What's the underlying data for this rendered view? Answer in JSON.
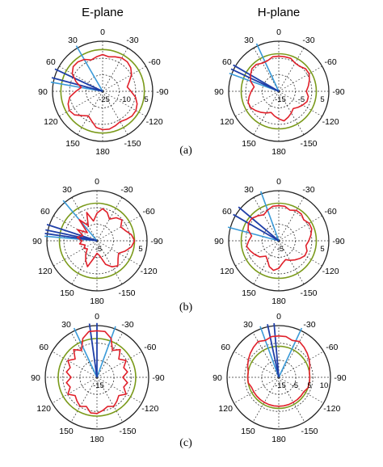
{
  "figure": {
    "column_titles": [
      "E-plane",
      "H-plane"
    ],
    "row_labels": [
      "(a)",
      "(b)",
      "(c)"
    ]
  },
  "colors": {
    "measured": "#e0202a",
    "reference_circle": "#7a9a1a",
    "main_beam": "#1f3fa8",
    "beam_edge": "#3a9ad8",
    "grid": "#333333",
    "outer_ring": "#222222"
  },
  "chart_data": [
    {
      "type": "polar",
      "plane": "E-plane",
      "case": "(a)",
      "angle_labels": [
        "0",
        "-30",
        "-60",
        "-90",
        "-120",
        "-150",
        "180",
        "150",
        "120",
        "90",
        "60",
        "30"
      ],
      "radial_labels": [
        "-25",
        "-10",
        "5"
      ],
      "r_range_db": [
        -25,
        5
      ],
      "reference_level_db": 0,
      "beam_deg": {
        "main": [
          65,
          75
        ],
        "edges": [
          30,
          80
        ]
      },
      "pattern_db": [
        -3,
        -4,
        -5,
        -3,
        -2,
        -2,
        -4,
        -8,
        -12,
        -9,
        -5,
        -3,
        -2,
        -3,
        -6,
        -8,
        -6,
        -3,
        -2,
        -2,
        -3,
        -4,
        -3,
        -2,
        -2,
        -3,
        -5,
        -8,
        -10,
        -8,
        -5,
        -3,
        -2,
        -2,
        -3,
        -4
      ]
    },
    {
      "type": "polar",
      "plane": "H-plane",
      "case": "(a)",
      "angle_labels": [
        "0",
        "-30",
        "-60",
        "-90",
        "-120",
        "-150",
        "180",
        "150",
        "120",
        "90",
        "60",
        "30"
      ],
      "radial_labels": [
        "-15",
        "-5",
        "5"
      ],
      "r_range_db": [
        -15,
        5
      ],
      "reference_level_db": 0,
      "beam_deg": {
        "main": [
          60,
          65
        ],
        "edges": [
          25,
          70
        ]
      },
      "pattern_db": [
        -1,
        -1,
        -2,
        -2,
        -1,
        -1,
        -2,
        -3,
        -5,
        -4,
        -3,
        -2,
        -2,
        -3,
        -4,
        -5,
        -6,
        -5,
        -4,
        -3,
        -4,
        -5,
        -6,
        -5,
        -4,
        -3,
        -3,
        -4,
        -3,
        -2,
        -1,
        -1,
        -2,
        -2,
        -1,
        -1
      ]
    },
    {
      "type": "polar",
      "plane": "E-plane",
      "case": "(b)",
      "angle_labels": [
        "0",
        "-30",
        "-60",
        "-90",
        "-120",
        "-150",
        "180",
        "150",
        "120",
        "90",
        "60",
        "30"
      ],
      "radial_labels": [
        "-5",
        "5"
      ],
      "r_range_db": [
        -15,
        5
      ],
      "reference_level_db": 0,
      "beam_deg": {
        "main": [
          72,
          78,
          82
        ],
        "edges": [
          40,
          85
        ]
      },
      "pattern_db": [
        -4,
        -7,
        -3,
        -8,
        -4,
        -10,
        -6,
        -9,
        -7,
        -9,
        -8,
        -10,
        -9,
        -10,
        -8,
        -6,
        -4,
        -8,
        -10,
        -9,
        -5,
        -3,
        -2,
        -4,
        -5,
        -3,
        -1,
        0,
        -1,
        -3,
        -4,
        -2,
        -3,
        -5,
        -3,
        -2
      ]
    },
    {
      "type": "polar",
      "plane": "H-plane",
      "case": "(b)",
      "angle_labels": [
        "0",
        "-30",
        "-60",
        "-90",
        "-120",
        "-150",
        "180",
        "150",
        "120",
        "90",
        "60",
        "30"
      ],
      "radial_labels": [
        "-5",
        "5"
      ],
      "r_range_db": [
        -15,
        5
      ],
      "reference_level_db": 0,
      "beam_deg": {
        "main": [
          50,
          60
        ],
        "edges": [
          20,
          75
        ]
      },
      "pattern_db": [
        -1,
        -1,
        -2,
        -3,
        -2,
        -1,
        -1,
        -2,
        -4,
        -3,
        -2,
        -3,
        -4,
        -5,
        -7,
        -6,
        -4,
        -3,
        -4,
        -6,
        -7,
        -6,
        -5,
        -4,
        -3,
        -3,
        -4,
        -3,
        -2,
        -1,
        -1,
        -2,
        -1,
        -1,
        -2,
        -1
      ]
    },
    {
      "type": "polar",
      "plane": "E-plane",
      "case": "(c)",
      "angle_labels": [
        "0",
        "-30",
        "-60",
        "-90",
        "-120",
        "-150",
        "180",
        "150",
        "120",
        "90",
        "60",
        "30"
      ],
      "radial_labels": [
        "-15"
      ],
      "r_range_db": [
        -15,
        5
      ],
      "reference_level_db": 0,
      "beam_deg": {
        "main": [
          0,
          8
        ],
        "edges": [
          -20,
          25
        ]
      },
      "pattern_db": [
        3,
        3,
        1,
        -3,
        -1,
        -4,
        -2,
        -4,
        -3,
        -5,
        -3,
        -4,
        -2,
        -4,
        -3,
        -2,
        -3,
        -1,
        -1,
        -2,
        -3,
        -2,
        -3,
        -4,
        -2,
        -4,
        -3,
        -5,
        -3,
        -4,
        -2,
        -4,
        -1,
        -3,
        1,
        3
      ]
    },
    {
      "type": "polar",
      "plane": "H-plane",
      "case": "(c)",
      "angle_labels": [
        "0",
        "-30",
        "-60",
        "-90",
        "-120",
        "-150",
        "180",
        "150",
        "120",
        "90",
        "60",
        "30"
      ],
      "radial_labels": [
        "-15",
        "-5",
        "5",
        "10"
      ],
      "r_range_db": [
        -15,
        10
      ],
      "reference_level_db": 0,
      "beam_deg": {
        "main": [
          5,
          12
        ],
        "edges": [
          -25,
          20
        ]
      },
      "pattern_db": [
        5,
        5,
        4,
        5,
        4,
        3,
        2,
        1,
        0,
        0,
        0,
        -1,
        -1,
        -1,
        -1,
        -1,
        -1,
        -1,
        -1,
        -1,
        -1,
        -1,
        -1,
        -1,
        -1,
        0,
        0,
        0,
        0,
        1,
        2,
        3,
        4,
        5,
        4,
        5
      ]
    }
  ]
}
